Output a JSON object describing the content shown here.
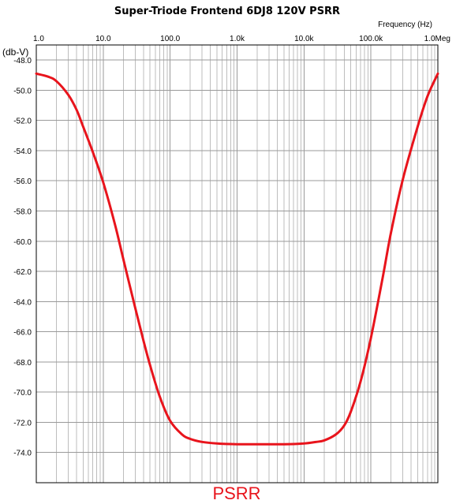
{
  "chart_data": {
    "type": "line",
    "title": "Super-Triode Frontend 6DJ8 120V PSRR",
    "xlabel": "Frequency   (Hz)",
    "ylabel": "(db-V)",
    "x_scale": "log",
    "xlim": [
      1,
      1000000
    ],
    "ylim": [
      -76,
      -47
    ],
    "grid": true,
    "x_tick_values": [
      1,
      10,
      100,
      1000,
      10000,
      100000,
      1000000
    ],
    "x_tick_labels": [
      "1.0",
      "10.0",
      "100.0",
      "1.0k",
      "10.0k",
      "100.0k",
      "1.0Meg"
    ],
    "y_tick_values": [
      -48,
      -50,
      -52,
      -54,
      -56,
      -58,
      -60,
      -62,
      -64,
      -66,
      -68,
      -70,
      -72,
      -74
    ],
    "y_tick_labels": [
      "-48.0",
      "-50.0",
      "-52.0",
      "-54.0",
      "-56.0",
      "-58.0",
      "-60.0",
      "-62.0",
      "-64.0",
      "-66.0",
      "-68.0",
      "-70.0",
      "-72.0",
      "-74.0"
    ],
    "legend_text": "PSRR",
    "legend_position": "bottom-center",
    "series": [
      {
        "name": "PSRR",
        "color": "#e8141c",
        "x": [
          1,
          1.5,
          2,
          3,
          4,
          5,
          7,
          10,
          15,
          20,
          30,
          40,
          50,
          70,
          100,
          150,
          200,
          300,
          500,
          1000,
          2000,
          5000,
          10000,
          15000,
          20000,
          30000,
          40000,
          50000,
          70000,
          100000,
          150000,
          200000,
          300000,
          500000,
          700000,
          1000000
        ],
        "y": [
          -48.9,
          -49.1,
          -49.4,
          -50.3,
          -51.3,
          -52.4,
          -54.1,
          -56.1,
          -58.9,
          -61.2,
          -64.4,
          -66.6,
          -68.2,
          -70.3,
          -71.9,
          -72.8,
          -73.1,
          -73.3,
          -73.4,
          -73.45,
          -73.45,
          -73.45,
          -73.4,
          -73.3,
          -73.2,
          -72.8,
          -72.2,
          -71.3,
          -69.3,
          -66.4,
          -62.4,
          -59.4,
          -55.9,
          -52.4,
          -50.4,
          -48.9
        ]
      }
    ]
  }
}
